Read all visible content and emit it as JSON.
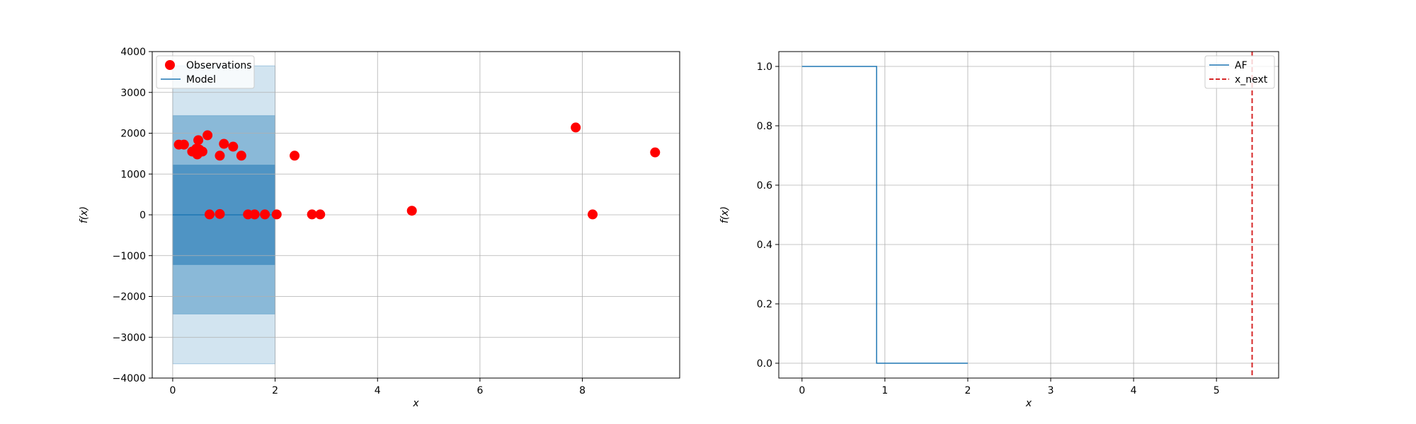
{
  "chart_data": [
    {
      "type": "scatter",
      "xlabel": "x",
      "ylabel": "f(x)",
      "xlim": [
        -0.4,
        9.9
      ],
      "ylim": [
        -4000,
        4000
      ],
      "xticks": [
        0,
        2,
        4,
        6,
        8
      ],
      "yticks": [
        -4000,
        -3000,
        -2000,
        -1000,
        0,
        1000,
        2000,
        3000,
        4000
      ],
      "grid": true,
      "legend": {
        "placement": "top-left",
        "entries": [
          "Observations",
          "Model"
        ]
      },
      "colors": {
        "observations": "#ff0000",
        "model": "#1f77b4"
      },
      "observations": {
        "name": "Observations",
        "x": [
          0.12,
          0.22,
          0.38,
          0.46,
          0.48,
          0.5,
          0.52,
          0.58,
          0.68,
          0.92,
          1.0,
          1.18,
          1.34,
          2.38,
          0.72,
          0.92,
          1.47,
          1.6,
          1.8,
          2.03,
          2.72,
          2.88,
          4.67,
          7.87,
          8.2,
          9.42
        ],
        "y": [
          1720,
          1720,
          1550,
          1620,
          1480,
          1830,
          1600,
          1550,
          1950,
          1450,
          1740,
          1670,
          1450,
          1450,
          10,
          20,
          10,
          10,
          10,
          10,
          10,
          10,
          100,
          2140,
          10,
          1530
        ]
      },
      "model": {
        "name": "Model",
        "x": [
          0,
          2
        ],
        "y": [
          0,
          0
        ],
        "band_x": [
          0,
          2
        ],
        "bands": [
          {
            "lower": -3650,
            "upper": 3650
          },
          {
            "lower": -2430,
            "upper": 2430
          },
          {
            "lower": -1220,
            "upper": 1220
          }
        ]
      }
    },
    {
      "type": "line",
      "xlabel": "x",
      "ylabel": "f(x)",
      "xlim": [
        -0.28,
        5.75
      ],
      "ylim": [
        -0.05,
        1.05
      ],
      "xticks": [
        0,
        1,
        2,
        3,
        4,
        5
      ],
      "yticks": [
        0.0,
        0.2,
        0.4,
        0.6,
        0.8,
        1.0
      ],
      "grid": true,
      "legend": {
        "placement": "top-right",
        "entries": [
          "AF",
          "x_next"
        ]
      },
      "colors": {
        "af": "#1f77b4",
        "x_next": "#d62728"
      },
      "af": {
        "name": "AF",
        "x": [
          0,
          0.9,
          0.9,
          2.0
        ],
        "y": [
          1.0,
          1.0,
          0.0,
          0.0
        ]
      },
      "x_next": {
        "name": "x_next",
        "x": 5.43
      }
    }
  ]
}
